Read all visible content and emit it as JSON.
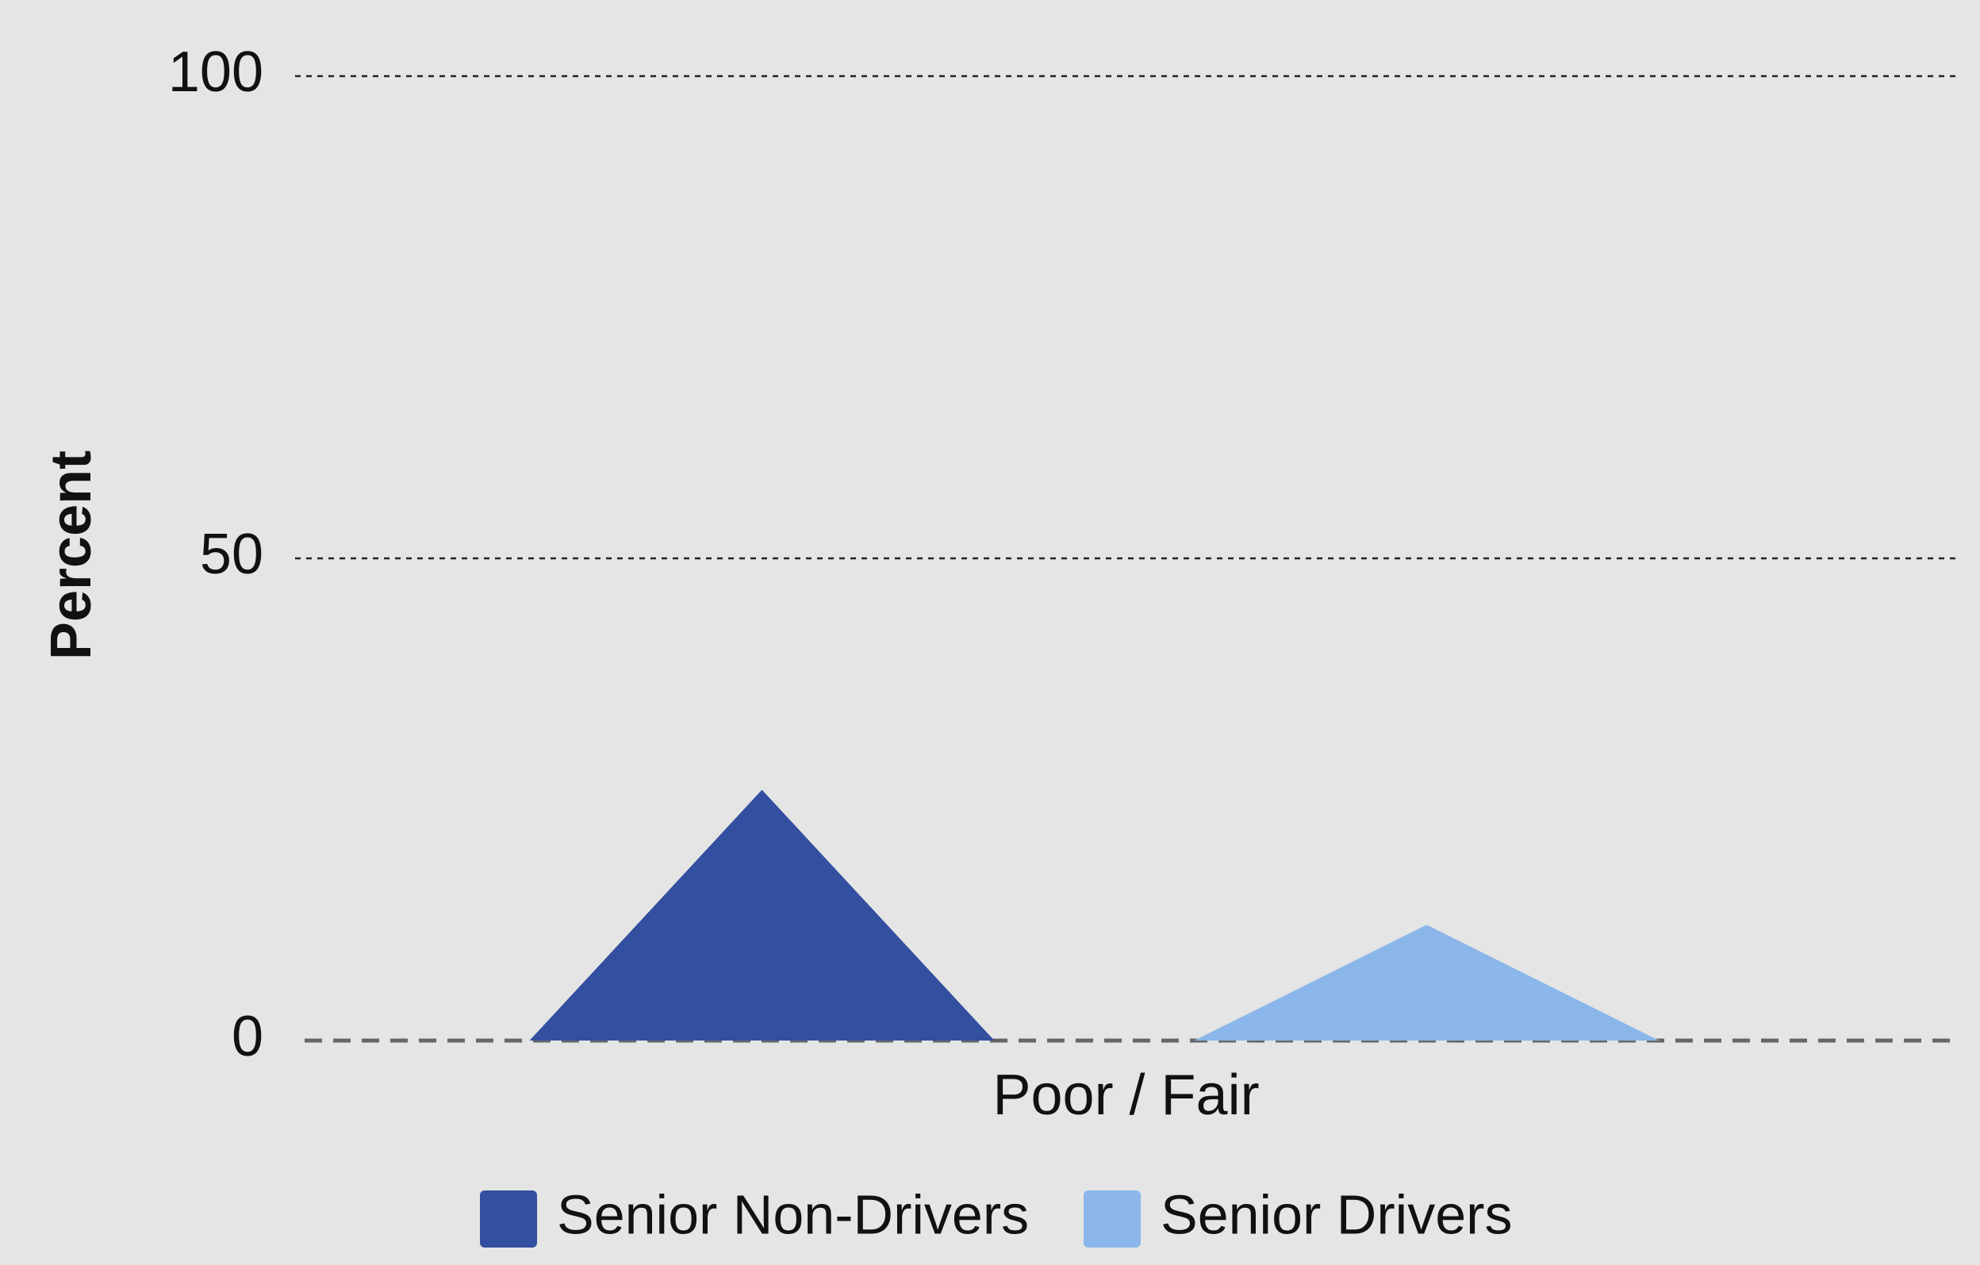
{
  "chart_data": {
    "type": "triangle-bar",
    "y_label": "Percent",
    "categories": [
      "Poor / Fair"
    ],
    "series": [
      {
        "name": "Senior Non-Drivers",
        "color": "#334f9f",
        "values": [
          26
        ]
      },
      {
        "name": "Senior Drivers",
        "color": "#8ab6ea",
        "values": [
          12
        ]
      }
    ],
    "ylim": [
      0,
      100
    ],
    "yticks": [
      0,
      50,
      100
    ],
    "grid": true,
    "legend": "bottom"
  }
}
